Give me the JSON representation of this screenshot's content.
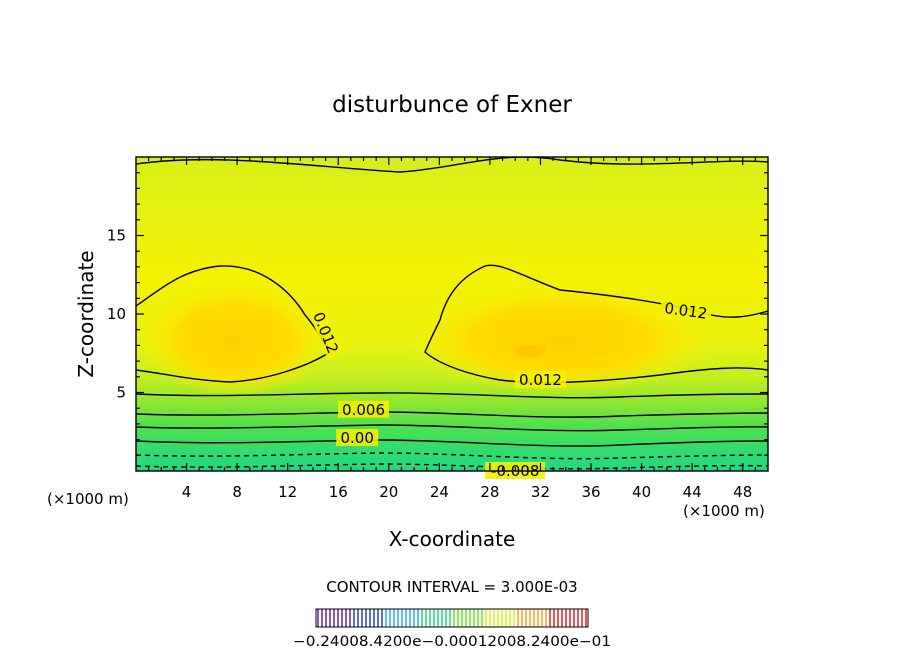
{
  "chart_data": {
    "type": "contour",
    "title": "disturbunce of Exner",
    "xlabel": "X-coordinate",
    "ylabel": "Z-coordinate",
    "x_unit": "(×1000 m)",
    "z_unit": "(×1000 m)",
    "xlim": [
      0,
      50
    ],
    "ylim": [
      0,
      20
    ],
    "x_ticks": [
      4,
      8,
      12,
      16,
      20,
      24,
      28,
      32,
      36,
      40,
      44,
      48
    ],
    "y_ticks": [
      5,
      10,
      15
    ],
    "contour_interval_text": "CONTOUR INTERVAL = 3.000E-03",
    "contour_labels": [
      {
        "text": "0.012",
        "x": 43.5,
        "z": 10.2,
        "angle": 8
      },
      {
        "text": "0.012",
        "x": 15.0,
        "z": 8.8,
        "angle": 68
      },
      {
        "text": "0.012",
        "x": 32.0,
        "z": 5.8,
        "angle": 0
      },
      {
        "text": "0.006",
        "x": 18.0,
        "z": 3.9,
        "angle": 0
      },
      {
        "text": "0.00",
        "x": 17.5,
        "z": 2.1,
        "angle": 0
      },
      {
        "text": "-0.008",
        "x": 30.0,
        "z": 0.0,
        "angle": 0
      }
    ],
    "colorbar": {
      "labels_text": "−0.24008.4200e−0.00012008.2400e−01"
    }
  }
}
